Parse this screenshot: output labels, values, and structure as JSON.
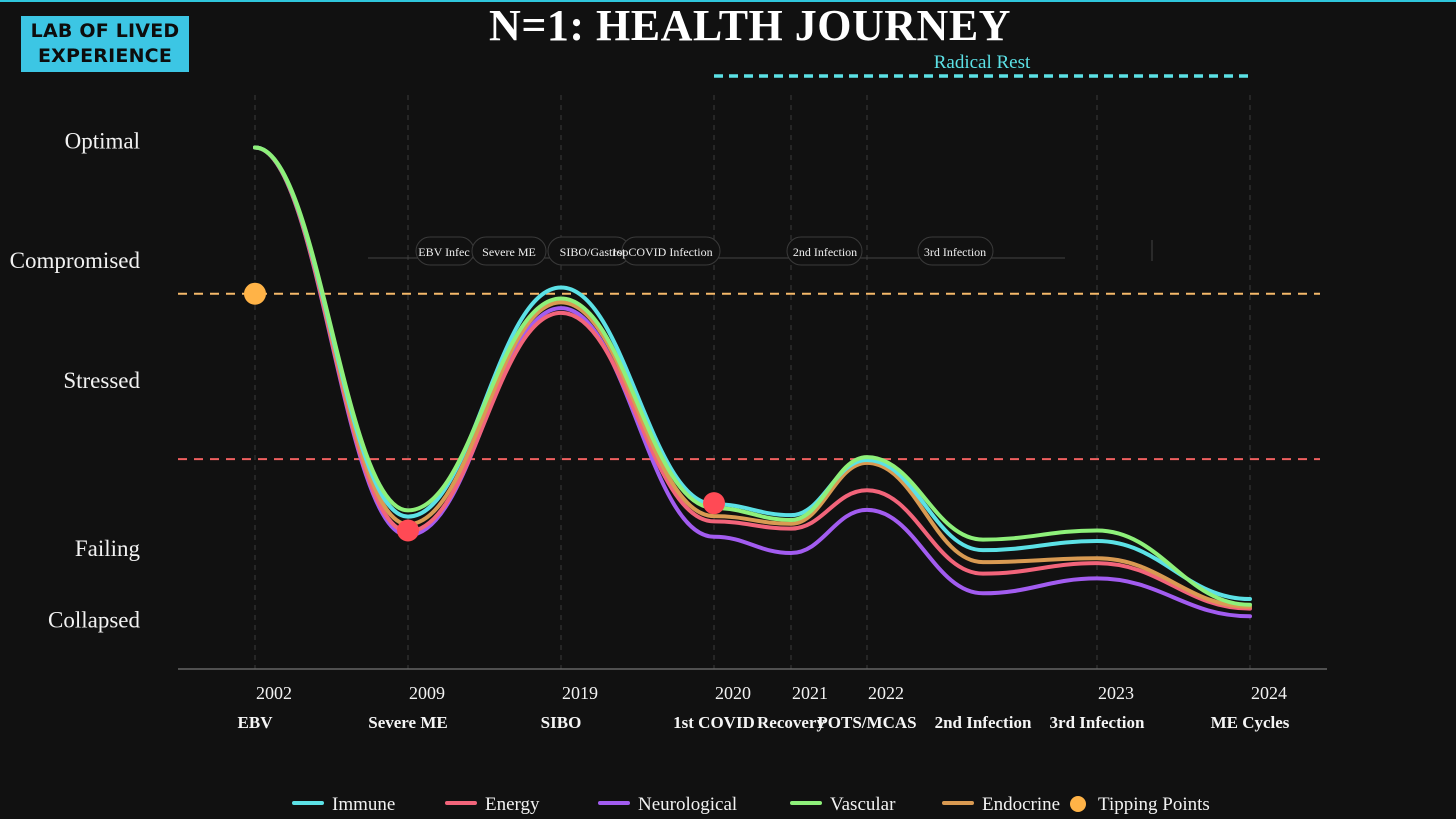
{
  "branding": {
    "logo_line1": "LAB OF LIVED",
    "logo_line2": "EXPERIENCE"
  },
  "colors": {
    "background": "#111111",
    "logo_bg": "#3cc6e4",
    "immune": "#5ce1e6",
    "energy": "#f2647a",
    "neurological": "#a25cf0",
    "vascular": "#8ef07a",
    "endocrine": "#d99a52",
    "tipping_orange": "#ffb347",
    "tipping_red": "#ff4a55",
    "threshold_upper": "#f5b96a",
    "threshold_lower": "#f06060",
    "radical_rest": "#5ce1e6"
  },
  "chart_data": {
    "type": "line",
    "title": "N=1: HEALTH JOURNEY",
    "x": [
      2002,
      2009,
      2019,
      2020,
      2021,
      2022,
      2023,
      2024
    ],
    "x_ticks": [
      {
        "year": "2002",
        "event": "EBV"
      },
      {
        "year": "2009",
        "event": "Severe ME"
      },
      {
        "year": "2019",
        "event": "SIBO"
      },
      {
        "year": "2020",
        "event": "1st COVID"
      },
      {
        "year": "2021",
        "event": "Recovery"
      },
      {
        "year": "2022",
        "event": "POTS/MCAS"
      },
      {
        "year": "",
        "event": "2nd Infection"
      },
      {
        "year": "2023",
        "event": "3rd Infection"
      },
      {
        "year": "2024",
        "event": "ME Cycles"
      }
    ],
    "y_levels": [
      {
        "label": "Optimal",
        "value": 100
      },
      {
        "label": "Compromised",
        "value": 75
      },
      {
        "label": "Stressed",
        "value": 50
      },
      {
        "label": "Failing",
        "value": 15
      },
      {
        "label": "Collapsed",
        "value": 0
      }
    ],
    "ylim": [
      -8,
      108
    ],
    "thresholds": [
      {
        "value": 68,
        "color": "upper"
      },
      {
        "value": 33.5,
        "color": "lower"
      }
    ],
    "series": [
      {
        "name": "Immune",
        "key": "immune",
        "points": [
          [
            0,
            98.5
          ],
          [
            1,
            21.5
          ],
          [
            2,
            69.3
          ],
          [
            3,
            24.1
          ],
          [
            4,
            21.8
          ],
          [
            5,
            33.3
          ],
          [
            6,
            14.5
          ],
          [
            7,
            16.4
          ],
          [
            8,
            4.3
          ]
        ]
      },
      {
        "name": "Energy",
        "key": "energy",
        "points": [
          [
            0,
            98.5
          ],
          [
            1,
            18.4
          ],
          [
            2,
            64.0
          ],
          [
            3,
            20.5
          ],
          [
            4,
            19.0
          ],
          [
            5,
            27.0
          ],
          [
            6,
            9.6
          ],
          [
            7,
            11.8
          ],
          [
            8,
            2.3
          ]
        ]
      },
      {
        "name": "Neurological",
        "key": "neurological",
        "points": [
          [
            0,
            98.5
          ],
          [
            1,
            17.6
          ],
          [
            2,
            65.0
          ],
          [
            3,
            17.3
          ],
          [
            4,
            13.9
          ],
          [
            5,
            22.9
          ],
          [
            6,
            5.5
          ],
          [
            7,
            8.6
          ],
          [
            8,
            0.7
          ]
        ]
      },
      {
        "name": "Vascular",
        "key": "vascular",
        "points": [
          [
            0,
            98.5
          ],
          [
            1,
            22.8
          ],
          [
            2,
            67.0
          ],
          [
            3,
            23.3
          ],
          [
            4,
            20.8
          ],
          [
            5,
            33.9
          ],
          [
            6,
            16.7
          ],
          [
            7,
            18.6
          ],
          [
            8,
            3.1
          ]
        ]
      },
      {
        "name": "Endocrine",
        "key": "endocrine",
        "points": [
          [
            0,
            98.5
          ],
          [
            1,
            19.9
          ],
          [
            2,
            66.2
          ],
          [
            3,
            21.6
          ],
          [
            4,
            20.0
          ],
          [
            5,
            32.7
          ],
          [
            6,
            12.0
          ],
          [
            7,
            12.8
          ],
          [
            8,
            2.7
          ]
        ]
      }
    ],
    "tipping_points": [
      {
        "x": 0,
        "value": 68,
        "color": "orange"
      },
      {
        "x": 1,
        "value": 18.6,
        "color": "red"
      },
      {
        "x": 3,
        "value": 24.3,
        "color": "red"
      }
    ],
    "period_labels": [
      "EBV Infec",
      "Severe ME",
      "SIBO/Gastrop",
      "1st COVID Infection",
      "2nd Infection",
      "3rd Infection"
    ],
    "radical_rest": {
      "label": "Radical Rest",
      "from_year": 2020,
      "to_year": 2024
    },
    "legend": [
      {
        "label": "Immune",
        "key": "immune",
        "marker": "line"
      },
      {
        "label": "Energy",
        "key": "energy",
        "marker": "line"
      },
      {
        "label": "Neurological",
        "key": "neurological",
        "marker": "line"
      },
      {
        "label": "Vascular",
        "key": "vascular",
        "marker": "line"
      },
      {
        "label": "Endocrine",
        "key": "endocrine",
        "marker": "line"
      },
      {
        "label": "Tipping Points",
        "key": "tipping_orange",
        "marker": "dot"
      }
    ],
    "legend_position": "bottom",
    "grid": "vertical-dashed"
  }
}
